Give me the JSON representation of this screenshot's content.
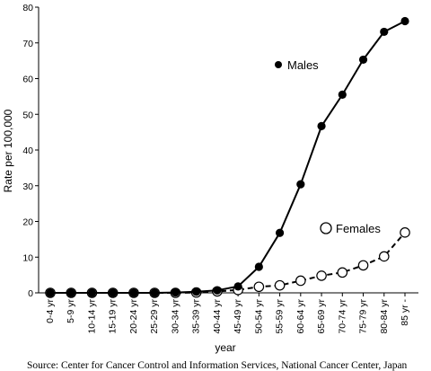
{
  "chart_data": {
    "type": "line",
    "xlabel": "year",
    "ylabel": "Rate per 100,000",
    "ylim": [
      0,
      80
    ],
    "yticks": [
      0,
      10,
      20,
      30,
      40,
      50,
      60,
      70,
      80
    ],
    "grid": false,
    "categories": [
      "0-4 yr",
      "5-9 yr",
      "10-14 yr",
      "15-19 yr",
      "20-24 yr",
      "25-29 yr",
      "30-34 yr",
      "35-39 yr",
      "40-44 yr",
      "45-49 yr",
      "50-54 yr",
      "55-59 yr",
      "60-64 yr",
      "65-69 yr",
      "70-74 yr",
      "75-79 yr",
      "80-84 yr",
      "85 yr -"
    ],
    "series": [
      {
        "name": "Males",
        "line_style": "solid",
        "marker": "filled-circle",
        "color": "#000000",
        "values": [
          0,
          0,
          0,
          0,
          0,
          0,
          0.1,
          0.3,
          0.7,
          1.8,
          7.3,
          16.8,
          30.4,
          46.7,
          55.5,
          65.3,
          73.1,
          76.1
        ]
      },
      {
        "name": "Females",
        "line_style": "dashed",
        "marker": "open-circle",
        "color": "#000000",
        "values": [
          0,
          0,
          0,
          0,
          0,
          0,
          0,
          0.1,
          0.4,
          0.8,
          1.7,
          2.1,
          3.4,
          4.8,
          5.7,
          7.7,
          10.2,
          16.9
        ]
      }
    ],
    "source": "Source: Center for Cancer Control and Information Services, National Cancer Center, Japan"
  }
}
